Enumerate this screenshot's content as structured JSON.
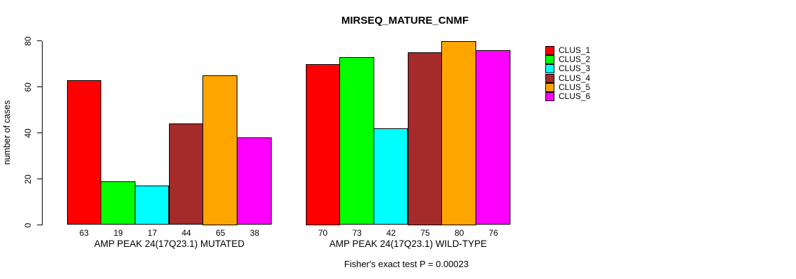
{
  "chart_data": {
    "type": "bar",
    "title": "MIRSEQ_MATURE_CNMF",
    "ylabel": "number of cases",
    "xlabel": "",
    "ylim": [
      0,
      80
    ],
    "yticks": [
      0,
      20,
      40,
      60,
      80
    ],
    "grid": false,
    "legend_position": "right-top",
    "bar_value_labels_shown": true,
    "categories": [
      "AMP PEAK 24(17Q23.1) MUTATED",
      "AMP PEAK 24(17Q23.1) WILD-TYPE"
    ],
    "series": [
      {
        "name": "CLUS_1",
        "color": "#FF0000",
        "values": [
          63,
          70
        ]
      },
      {
        "name": "CLUS_2",
        "color": "#00FF00",
        "values": [
          19,
          73
        ]
      },
      {
        "name": "CLUS_3",
        "color": "#00FFFF",
        "values": [
          17,
          42
        ]
      },
      {
        "name": "CLUS_4",
        "color": "#A52A2A",
        "values": [
          44,
          75
        ]
      },
      {
        "name": "CLUS_5",
        "color": "#FFA500",
        "values": [
          65,
          80
        ]
      },
      {
        "name": "CLUS_6",
        "color": "#FF00FF",
        "values": [
          38,
          76
        ]
      }
    ],
    "annotation": "Fisher's exact test P = 0.00023",
    "colors": {
      "axis": "#000000",
      "text": "#000000",
      "background": "#FFFFFF"
    }
  }
}
